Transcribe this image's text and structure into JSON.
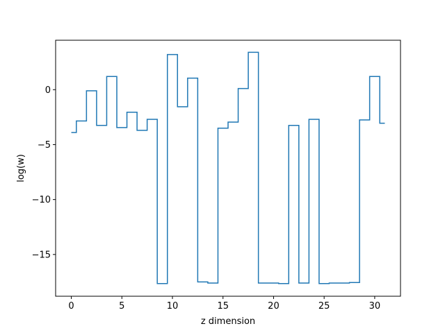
{
  "chart_data": {
    "type": "line",
    "drawstyle": "steps-mid",
    "xlabel": "z dimension",
    "ylabel": "log(w)",
    "xlim": [
      -1.55,
      32.55
    ],
    "ylim": [
      -18.8,
      4.5
    ],
    "grid": false,
    "line_color": "#1f77b4",
    "xticks": [
      0,
      5,
      10,
      15,
      20,
      25,
      30
    ],
    "yticks": [
      -15,
      -10,
      -5,
      0
    ],
    "ytick_labels": [
      "−15",
      "−10",
      "−5",
      "0"
    ],
    "x": [
      0,
      1,
      2,
      3,
      4,
      5,
      6,
      7,
      8,
      9,
      10,
      11,
      12,
      13,
      14,
      15,
      16,
      17,
      18,
      19,
      20,
      21,
      22,
      23,
      24,
      25,
      26,
      27,
      28,
      29,
      30,
      31
    ],
    "y": [
      -3.9,
      -2.85,
      -0.1,
      -3.25,
      1.2,
      -3.45,
      -2.05,
      -3.7,
      -2.7,
      -17.65,
      3.2,
      -1.55,
      1.05,
      -17.5,
      -17.6,
      -3.5,
      -2.95,
      0.1,
      3.4,
      -17.6,
      -17.6,
      -17.65,
      -3.25,
      -17.6,
      -2.7,
      -17.65,
      -17.6,
      -17.6,
      -17.55,
      -2.75,
      1.2,
      -3.05
    ]
  }
}
